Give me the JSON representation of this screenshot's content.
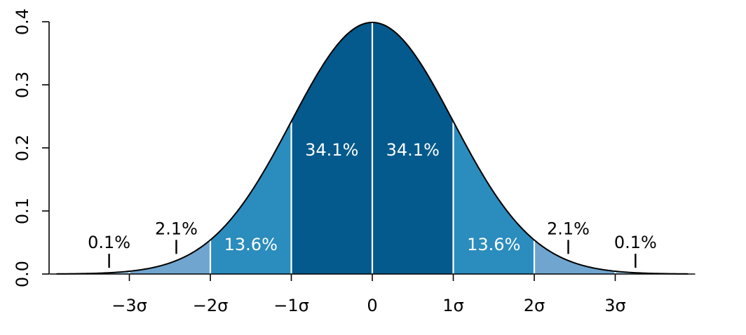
{
  "chart_data": {
    "type": "area",
    "title": "",
    "xlabel": "",
    "ylabel": "",
    "distribution": "standard normal probability density",
    "xlim": [
      -3.9,
      3.9
    ],
    "ylim": [
      0,
      0.4
    ],
    "y_ticks": [
      {
        "value": 0.0,
        "label": "0.0"
      },
      {
        "value": 0.1,
        "label": "0.1"
      },
      {
        "value": 0.2,
        "label": "0.2"
      },
      {
        "value": 0.3,
        "label": "0.3"
      },
      {
        "value": 0.4,
        "label": "0.4"
      }
    ],
    "x_ticks": [
      {
        "value": -3,
        "label": "−3σ"
      },
      {
        "value": -2,
        "label": "−2σ"
      },
      {
        "value": -1,
        "label": "−1σ"
      },
      {
        "value": 0,
        "label": "0"
      },
      {
        "value": 1,
        "label": "1σ"
      },
      {
        "value": 2,
        "label": "2σ"
      },
      {
        "value": 3,
        "label": "3σ"
      }
    ],
    "regions": [
      {
        "from": -3,
        "to": -2,
        "color": "#6fa5cf"
      },
      {
        "from": -2,
        "to": -1,
        "color": "#2b8cbe"
      },
      {
        "from": -1,
        "to": 0,
        "color": "#045a8d"
      },
      {
        "from": 0,
        "to": 1,
        "color": "#045a8d"
      },
      {
        "from": 1,
        "to": 2,
        "color": "#2b8cbe"
      },
      {
        "from": 2,
        "to": 3,
        "color": "#6fa5cf"
      }
    ],
    "outer_tail_color": "#9ecae1",
    "region_labels": [
      {
        "x": -0.5,
        "y": 0.188,
        "label": "34.1%"
      },
      {
        "x": 0.5,
        "y": 0.188,
        "label": "34.1%"
      },
      {
        "x": -1.5,
        "y": 0.038,
        "label": "13.6%"
      },
      {
        "x": 1.5,
        "y": 0.038,
        "label": "13.6%"
      }
    ],
    "tail_labels": [
      {
        "x": -2.42,
        "y": 0.063,
        "label": "2.1%",
        "leader_x": -2.42
      },
      {
        "x": 2.42,
        "y": 0.063,
        "label": "2.1%",
        "leader_x": 2.42
      },
      {
        "x": -3.25,
        "y": 0.041,
        "label": "0.1%",
        "leader_x": -3.25
      },
      {
        "x": 3.25,
        "y": 0.041,
        "label": "0.1%",
        "leader_x": 3.25
      }
    ],
    "grid": false,
    "legend": "none"
  }
}
